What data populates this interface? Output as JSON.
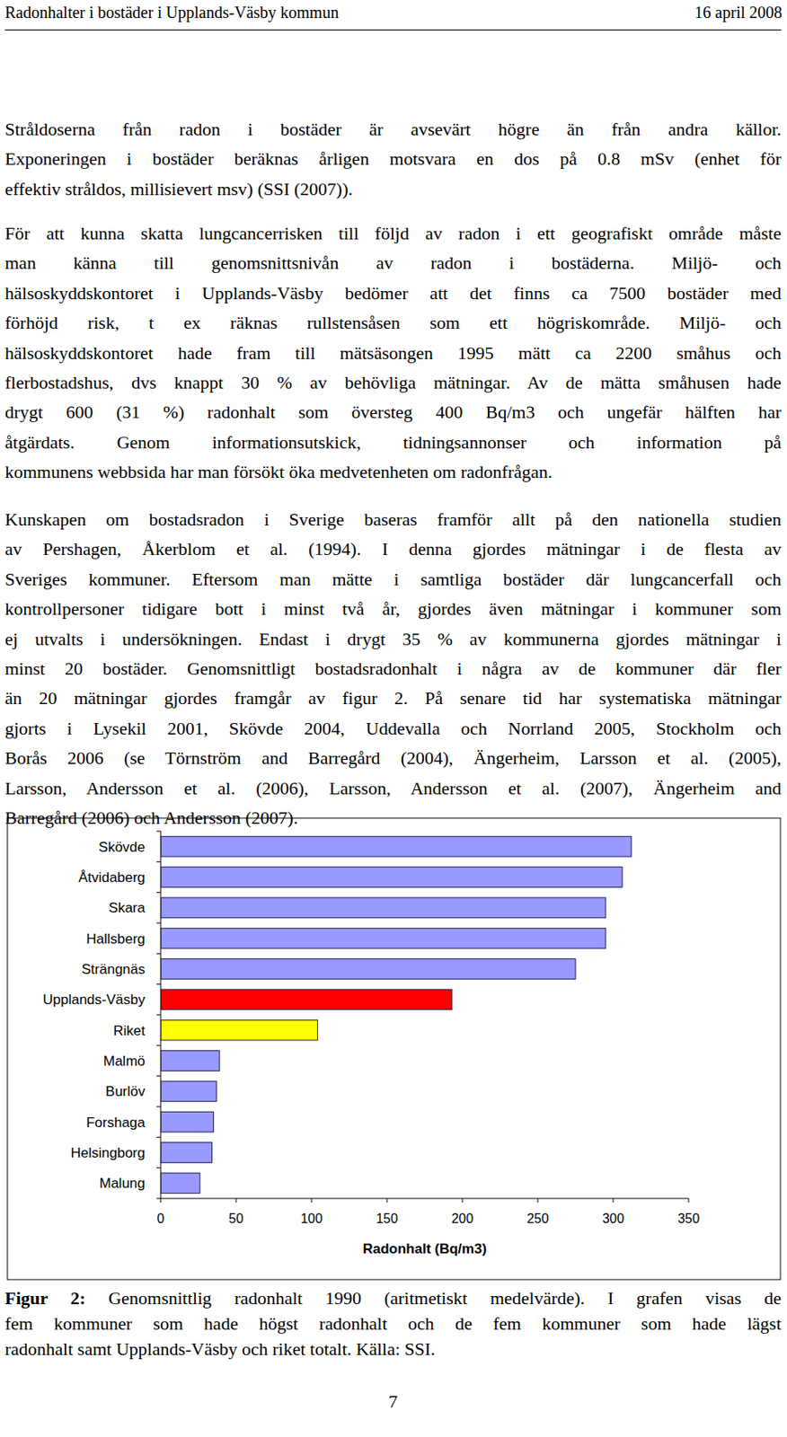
{
  "header": {
    "title": "Radonhalter i bostäder i Upplands-Väsby kommun",
    "date": "16 april 2008"
  },
  "paragraphs": [
    [
      "Stråldoserna från radon i bostäder är avsevärt högre än från andra källor.",
      "Exponeringen i bostäder beräknas årligen motsvara en dos på 0.8 mSv (enhet för",
      "effektiv stråldos, millisievert msv) (SSI (2007))."
    ],
    [
      "För att kunna skatta lungcancerrisken till följd av radon i ett geografiskt område måste",
      "man känna till genomsnittsnivån av radon i bostäderna. Miljö- och",
      "hälsoskyddskontoret i Upplands-Väsby bedömer att det finns ca 7500 bostäder med",
      "förhöjd risk, t ex räknas rullstensåsen som ett högriskområde. Miljö- och",
      "hälsoskyddskontoret hade fram till mätsäsongen 1995 mätt ca 2200 småhus och",
      "flerbostadshus, dvs knappt 30 % av behövliga mätningar. Av de mätta småhusen hade",
      "drygt 600 (31 %) radonhalt som översteg 400 Bq/m3 och ungefär hälften har",
      "åtgärdats. Genom informationsutskick, tidningsannonser och information på",
      "kommunens webbsida har man försökt öka medvetenheten om radonfrågan."
    ],
    [
      "Kunskapen om bostadsradon i Sverige baseras framför allt på den nationella studien",
      "av Pershagen, Åkerblom et al. (1994). I denna gjordes mätningar i de flesta av",
      "Sveriges kommuner. Eftersom man mätte i samtliga bostäder där lungcancerfall och",
      "kontrollpersoner tidigare bott i minst två år, gjordes även mätningar i kommuner som",
      "ej utvalts i undersökningen. Endast i drygt 35 % av kommunerna gjordes mätningar i",
      "minst 20 bostäder.  Genomsnittligt bostadsradonhalt i några av de kommuner där fler",
      "än 20 mätningar gjordes framgår av figur 2. På senare tid har systematiska mätningar",
      "gjorts i Lysekil 2001, Skövde 2004, Uddevalla och Norrland 2005, Stockholm och",
      "Borås 2006 (se Törnström and Barregård (2004), Ängerheim, Larsson et al. (2005),",
      "Larsson, Andersson et al. (2006), Larsson, Andersson et al. (2007), Ängerheim and",
      "Barregård (2006) och Andersson (2007)."
    ]
  ],
  "chart_data": {
    "type": "bar",
    "orientation": "horizontal",
    "categories": [
      "Skövde",
      "Åtvidaberg",
      "Skara",
      "Hallsberg",
      "Strängnäs",
      "Upplands-Väsby",
      "Riket",
      "Malmö",
      "Burlöv",
      "Forshaga",
      "Helsingborg",
      "Malung"
    ],
    "values": [
      312,
      306,
      295,
      295,
      275,
      193,
      104,
      39,
      37,
      35,
      34,
      26
    ],
    "colors": [
      "#9999ff",
      "#9999ff",
      "#9999ff",
      "#9999ff",
      "#9999ff",
      "#ff0000",
      "#ffff00",
      "#9999ff",
      "#9999ff",
      "#9999ff",
      "#9999ff",
      "#9999ff"
    ],
    "xlim": [
      0,
      350
    ],
    "xticks": [
      0,
      50,
      100,
      150,
      200,
      250,
      300,
      350
    ],
    "x_label": "Radonhalt (Bq/m3)",
    "grid": false
  },
  "caption": {
    "label": "Figur 2:",
    "lines": [
      "Genomsnittlig radonhalt 1990 (aritmetiskt medelvärde). I grafen visas de",
      "fem kommuner som hade högst radonhalt och de fem kommuner som hade lägst",
      "radonhalt samt Upplands-Väsby och riket totalt. Källa: SSI."
    ]
  },
  "page_number": "7"
}
